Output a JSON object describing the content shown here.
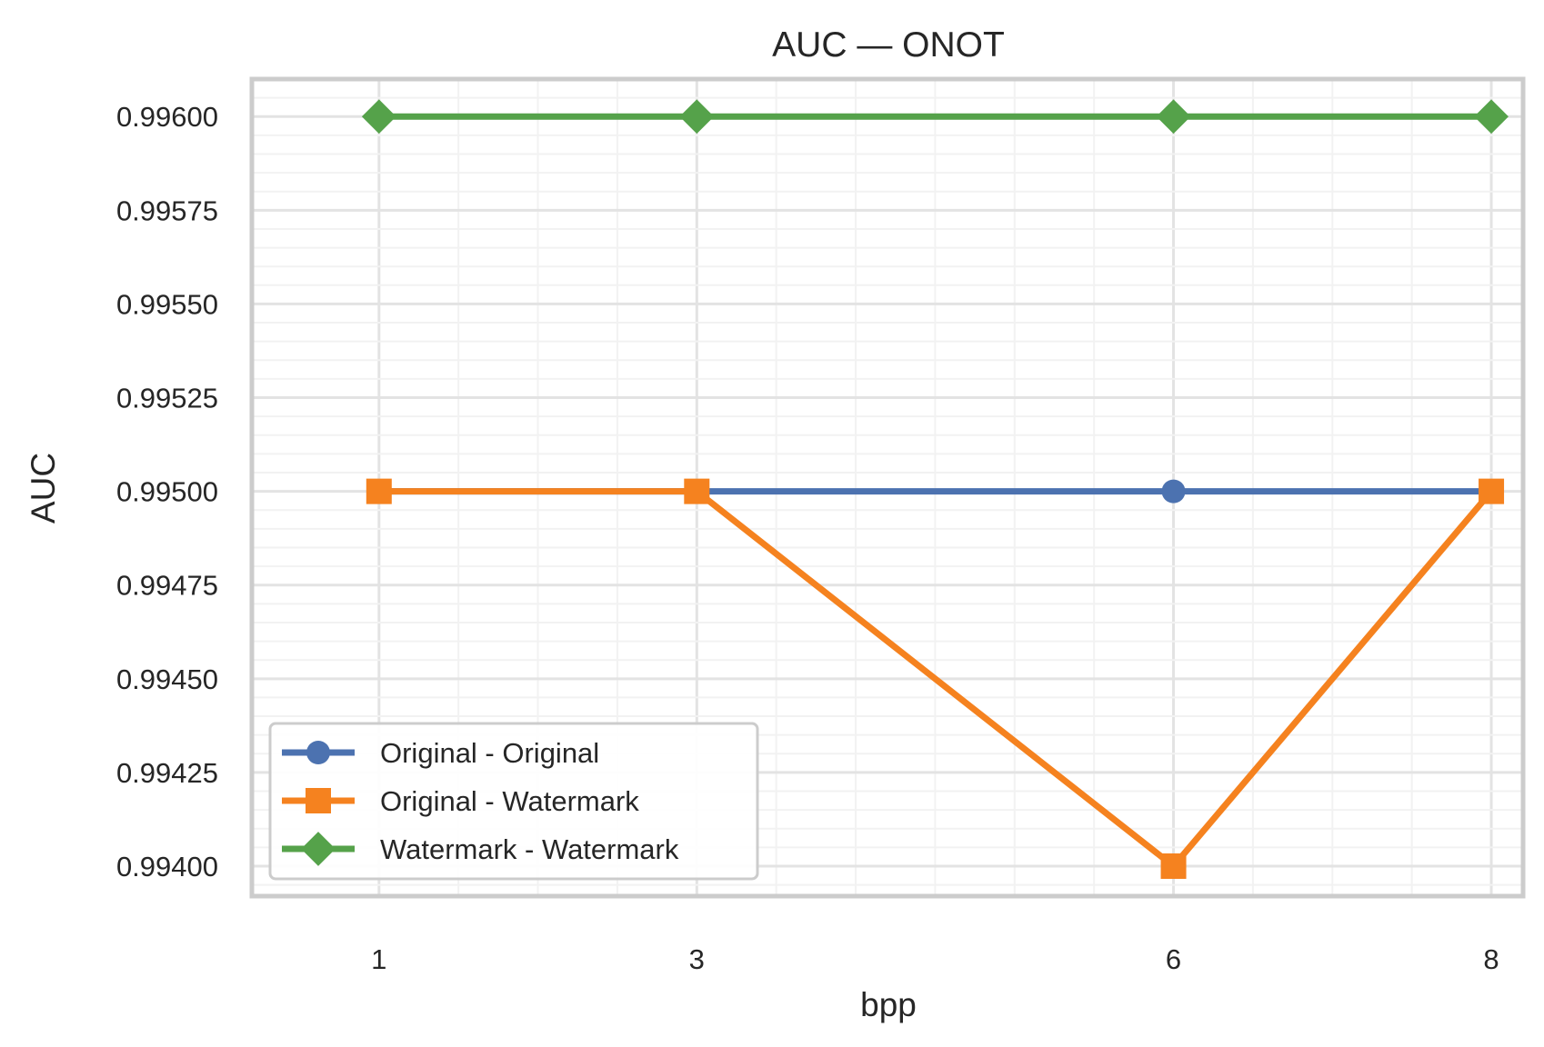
{
  "chart_data": {
    "type": "line",
    "title": "AUC — ONOT",
    "xlabel": "bpp",
    "ylabel": "AUC",
    "x": [
      1,
      3,
      6,
      8
    ],
    "xticks": [
      "1",
      "3",
      "6",
      "8"
    ],
    "yticks": [
      "0.99400",
      "0.99425",
      "0.99450",
      "0.99475",
      "0.99500",
      "0.99525",
      "0.99550",
      "0.99575",
      "0.99600"
    ],
    "ylim": [
      0.99392,
      0.9961
    ],
    "xlim": [
      0.2,
      8.2
    ],
    "grid": true,
    "legend_position": "lower-left",
    "series": [
      {
        "name": "Original - Original",
        "values": [
          0.995,
          0.995,
          0.995,
          0.995
        ],
        "color": "#4c72b0",
        "marker": "circle"
      },
      {
        "name": "Original - Watermark",
        "values": [
          0.995,
          0.995,
          0.994,
          0.995
        ],
        "color": "#f5821f",
        "marker": "square"
      },
      {
        "name": "Watermark - Watermark",
        "values": [
          0.996,
          0.996,
          0.996,
          0.996
        ],
        "color": "#55a24a",
        "marker": "diamond"
      }
    ]
  }
}
